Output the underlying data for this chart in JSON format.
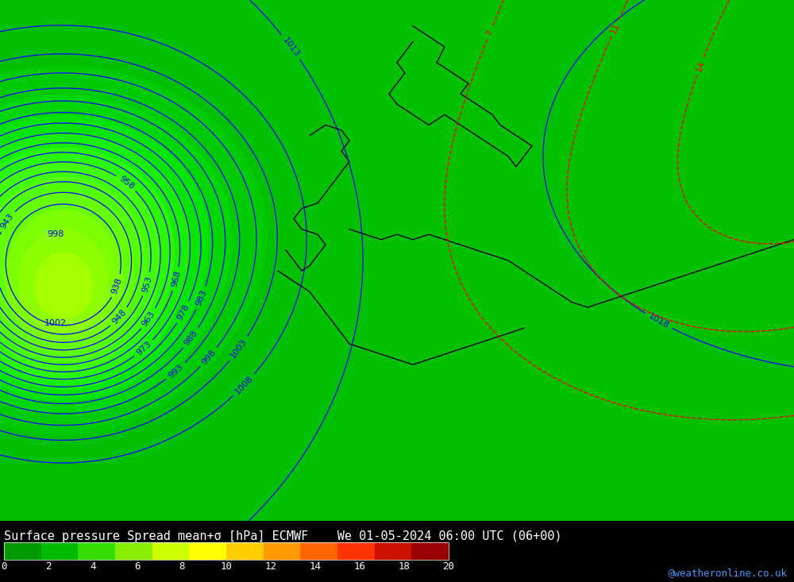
{
  "title": "Surface pressure Spread mean+σ [hPa] ECMWF    We 01-05-2024 06:00 UTC (06+00)",
  "colorbar_label": "Surface pressure Spread mean+σ [hPa] ECMWF    We 01-05-2024 06:00 UTC (06+00)",
  "colorbar_ticks": [
    0,
    2,
    4,
    6,
    8,
    10,
    12,
    14,
    16,
    18,
    20
  ],
  "colorbar_colors": [
    "#00cc00",
    "#00e600",
    "#33ff00",
    "#99ff00",
    "#ccff00",
    "#ffff00",
    "#ffcc00",
    "#ff9900",
    "#ff6600",
    "#ff3300",
    "#cc0000",
    "#990000"
  ],
  "background_color": "#00cc00",
  "fig_width": 10.0,
  "fig_height": 7.33,
  "map_bg": "#00cc00",
  "watermark": "@weatheronline.co.uk",
  "credit_color": "#4499ff"
}
